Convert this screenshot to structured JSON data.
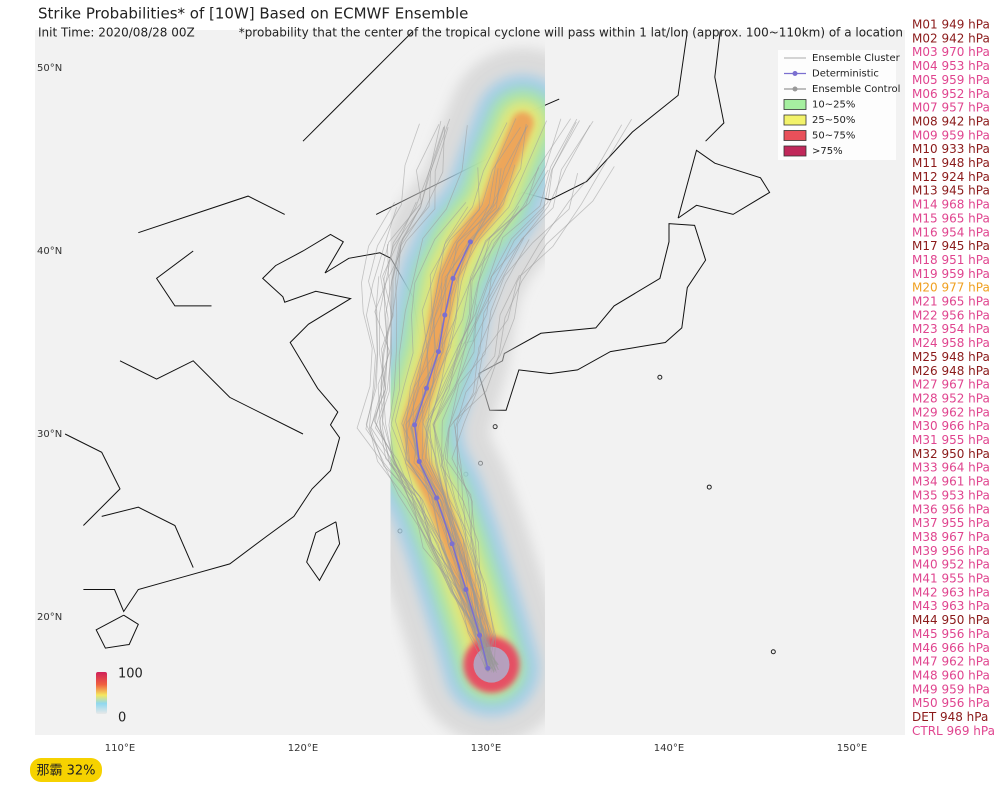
{
  "header": {
    "title": "Strike Probabilities* of [10W] Based on ECMWF Ensemble",
    "init_time": "Init Time: 2020/08/28 00Z",
    "note": "*probability that the center of the tropical cyclone will pass within 1 lat/lon (approx. 100~110km) of a location"
  },
  "lat_labels": [
    "50°N",
    "40°N",
    "30°N",
    "20°N"
  ],
  "lon_labels": [
    "110°E",
    "120°E",
    "130°E",
    "140°E",
    "150°E"
  ],
  "legend": [
    {
      "label": "Ensemble Cluster",
      "color": "#bbbbbb"
    },
    {
      "label": "Deterministic",
      "color": "#7b6fd0"
    },
    {
      "label": "Ensemble Control",
      "color": "#999999"
    },
    {
      "label": "10~25%",
      "color": "#a6f0a0"
    },
    {
      "label": "25~50%",
      "color": "#f2f26a"
    },
    {
      "label": "50~75%",
      "color": "#e8505a"
    },
    {
      "label": ">75%",
      "color": "#c0285a"
    }
  ],
  "colorbar": {
    "max": "100",
    "min": "0"
  },
  "members": [
    {
      "label": "M01 949 hPa",
      "color": "#8b1a1a"
    },
    {
      "label": "M02 942 hPa",
      "color": "#8b1a1a"
    },
    {
      "label": "M03 970 hPa",
      "color": "#e0458f"
    },
    {
      "label": "M04 953 hPa",
      "color": "#e0458f"
    },
    {
      "label": "M05 959 hPa",
      "color": "#e0458f"
    },
    {
      "label": "M06 952 hPa",
      "color": "#e0458f"
    },
    {
      "label": "M07 957 hPa",
      "color": "#e0458f"
    },
    {
      "label": "M08 942 hPa",
      "color": "#8b1a1a"
    },
    {
      "label": "M09 959 hPa",
      "color": "#e0458f"
    },
    {
      "label": "M10 933 hPa",
      "color": "#8b1a1a"
    },
    {
      "label": "M11 948 hPa",
      "color": "#8b1a1a"
    },
    {
      "label": "M12 924 hPa",
      "color": "#8b1a1a"
    },
    {
      "label": "M13 945 hPa",
      "color": "#8b1a1a"
    },
    {
      "label": "M14 968 hPa",
      "color": "#e0458f"
    },
    {
      "label": "M15 965 hPa",
      "color": "#e0458f"
    },
    {
      "label": "M16 954 hPa",
      "color": "#e0458f"
    },
    {
      "label": "M17 945 hPa",
      "color": "#8b1a1a"
    },
    {
      "label": "M18 951 hPa",
      "color": "#e0458f"
    },
    {
      "label": "M19 959 hPa",
      "color": "#e0458f"
    },
    {
      "label": "M20 977 hPa",
      "color": "#f0a020"
    },
    {
      "label": "M21 965 hPa",
      "color": "#e0458f"
    },
    {
      "label": "M22 956 hPa",
      "color": "#e0458f"
    },
    {
      "label": "M23 954 hPa",
      "color": "#e0458f"
    },
    {
      "label": "M24 958 hPa",
      "color": "#e0458f"
    },
    {
      "label": "M25 948 hPa",
      "color": "#8b1a1a"
    },
    {
      "label": "M26 948 hPa",
      "color": "#8b1a1a"
    },
    {
      "label": "M27 967 hPa",
      "color": "#e0458f"
    },
    {
      "label": "M28 952 hPa",
      "color": "#e0458f"
    },
    {
      "label": "M29 962 hPa",
      "color": "#e0458f"
    },
    {
      "label": "M30 966 hPa",
      "color": "#e0458f"
    },
    {
      "label": "M31 955 hPa",
      "color": "#e0458f"
    },
    {
      "label": "M32 950 hPa",
      "color": "#8b1a1a"
    },
    {
      "label": "M33 964 hPa",
      "color": "#e0458f"
    },
    {
      "label": "M34 961 hPa",
      "color": "#e0458f"
    },
    {
      "label": "M35 953 hPa",
      "color": "#e0458f"
    },
    {
      "label": "M36 956 hPa",
      "color": "#e0458f"
    },
    {
      "label": "M37 955 hPa",
      "color": "#e0458f"
    },
    {
      "label": "M38 967 hPa",
      "color": "#e0458f"
    },
    {
      "label": "M39 956 hPa",
      "color": "#e0458f"
    },
    {
      "label": "M40 952 hPa",
      "color": "#e0458f"
    },
    {
      "label": "M41 955 hPa",
      "color": "#e0458f"
    },
    {
      "label": "M42 963 hPa",
      "color": "#e0458f"
    },
    {
      "label": "M43 963 hPa",
      "color": "#e0458f"
    },
    {
      "label": "M44 950 hPa",
      "color": "#8b1a1a"
    },
    {
      "label": "M45 956 hPa",
      "color": "#e0458f"
    },
    {
      "label": "M46 966 hPa",
      "color": "#e0458f"
    },
    {
      "label": "M47 962 hPa",
      "color": "#e0458f"
    },
    {
      "label": "M48 960 hPa",
      "color": "#e0458f"
    },
    {
      "label": "M49 959 hPa",
      "color": "#e0458f"
    },
    {
      "label": "M50 956 hPa",
      "color": "#e0458f"
    },
    {
      "label": "DET 948 hPa",
      "color": "#8b1a1a"
    },
    {
      "label": "CTRL 969 hPa",
      "color": "#e0458f"
    }
  ],
  "badge": "那霸 32%"
}
